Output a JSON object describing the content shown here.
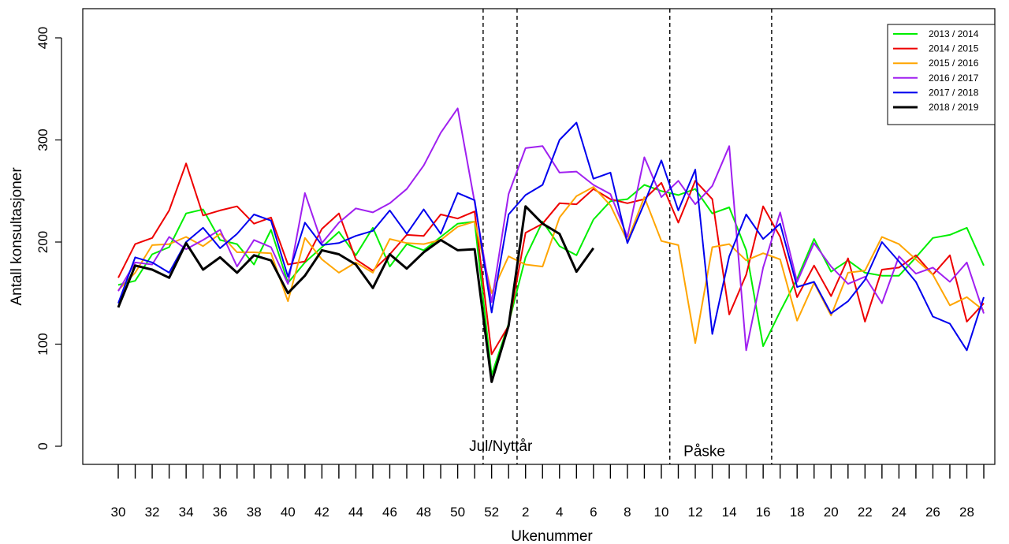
{
  "chart_data": {
    "type": "line",
    "title": "",
    "xlabel": "Ukenummer",
    "ylabel": "Antall konsultasjoner",
    "ylim": [
      0,
      400
    ],
    "yticks": [
      0,
      100,
      200,
      300,
      400
    ],
    "x_categories": [
      30,
      31,
      32,
      33,
      34,
      35,
      36,
      37,
      38,
      39,
      40,
      41,
      42,
      43,
      44,
      45,
      46,
      47,
      48,
      49,
      50,
      51,
      52,
      1,
      2,
      3,
      4,
      5,
      6,
      7,
      8,
      9,
      10,
      11,
      12,
      13,
      14,
      15,
      16,
      17,
      18,
      19,
      20,
      21,
      22,
      23,
      24,
      25,
      26,
      27,
      28,
      29
    ],
    "x_tick_labels": [
      "30",
      "32",
      "34",
      "36",
      "38",
      "40",
      "42",
      "44",
      "46",
      "48",
      "50",
      "52",
      "2",
      "4",
      "6",
      "8",
      "10",
      "12",
      "14",
      "16",
      "18",
      "20",
      "22",
      "24",
      "26",
      "28"
    ],
    "grid": false,
    "legend_position": "top-right",
    "vlines": [
      {
        "after_week": 51
      },
      {
        "after_week": 1
      },
      {
        "after_week": 10
      },
      {
        "after_week": 16
      }
    ],
    "annotations": [
      {
        "text": "Jul/Nyttår",
        "x_week": 1,
        "y": 0
      },
      {
        "text": "Påske",
        "x_week": 13,
        "y": -5
      }
    ],
    "series": [
      {
        "name": "2013 / 2014",
        "color": "#00ee00",
        "width": 2,
        "values": [
          158,
          162,
          188,
          195,
          228,
          232,
          202,
          198,
          178,
          212,
          160,
          180,
          195,
          210,
          187,
          214,
          176,
          198,
          192,
          205,
          218,
          220,
          70,
          120,
          185,
          220,
          196,
          187,
          222,
          240,
          242,
          256,
          250,
          246,
          252,
          228,
          234,
          192,
          98,
          132,
          164,
          203,
          171,
          182,
          170,
          167,
          167,
          185,
          204,
          207,
          214,
          177
        ]
      },
      {
        "name": "2014 / 2015",
        "color": "#ee0000",
        "width": 2,
        "values": [
          165,
          198,
          204,
          231,
          277,
          226,
          231,
          235,
          218,
          224,
          178,
          181,
          213,
          228,
          183,
          172,
          188,
          207,
          206,
          227,
          223,
          230,
          90,
          118,
          209,
          218,
          238,
          237,
          252,
          242,
          238,
          242,
          258,
          219,
          260,
          242,
          129,
          168,
          235,
          205,
          146,
          177,
          147,
          184,
          122,
          173,
          175,
          187,
          168,
          187,
          122,
          140
        ]
      },
      {
        "name": "2015 / 2016",
        "color": "#ffa500",
        "width": 2,
        "values": [
          153,
          170,
          197,
          198,
          205,
          196,
          208,
          190,
          190,
          189,
          142,
          204,
          183,
          170,
          180,
          170,
          203,
          199,
          198,
          202,
          215,
          220,
          150,
          186,
          178,
          176,
          224,
          245,
          254,
          236,
          201,
          244,
          201,
          197,
          101,
          195,
          198,
          182,
          189,
          183,
          123,
          160,
          128,
          170,
          172,
          205,
          198,
          183,
          168,
          138,
          146,
          133
        ]
      },
      {
        "name": "2016 / 2017",
        "color": "#a020f0",
        "width": 2,
        "values": [
          152,
          180,
          178,
          205,
          193,
          202,
          212,
          176,
          202,
          195,
          159,
          248,
          199,
          219,
          233,
          229,
          238,
          252,
          275,
          307,
          331,
          239,
          141,
          247,
          292,
          294,
          268,
          269,
          256,
          247,
          205,
          283,
          244,
          260,
          237,
          255,
          294,
          94,
          175,
          229,
          161,
          199,
          176,
          159,
          166,
          140,
          186,
          169,
          175,
          161,
          180,
          130
        ]
      },
      {
        "name": "2017 / 2018",
        "color": "#0000ee",
        "width": 2,
        "values": [
          140,
          185,
          180,
          170,
          200,
          214,
          194,
          208,
          227,
          221,
          166,
          219,
          197,
          199,
          206,
          211,
          231,
          208,
          232,
          208,
          248,
          241,
          131,
          227,
          246,
          256,
          300,
          317,
          262,
          268,
          199,
          238,
          280,
          231,
          271,
          110,
          186,
          227,
          203,
          218,
          156,
          161,
          130,
          142,
          163,
          200,
          181,
          161,
          127,
          120,
          94,
          146
        ]
      },
      {
        "name": "2018 / 2019",
        "color": "#000000",
        "width": 3,
        "values": [
          136,
          177,
          173,
          165,
          199,
          173,
          185,
          170,
          187,
          182,
          150,
          167,
          192,
          188,
          178,
          155,
          188,
          174,
          190,
          202,
          192,
          193,
          63,
          118,
          235,
          218,
          208,
          171,
          194,
          null,
          null,
          null,
          null,
          null,
          null,
          null,
          null,
          null,
          null,
          null,
          null,
          null,
          null,
          null,
          null,
          null,
          null,
          null,
          null,
          null,
          null,
          null
        ]
      }
    ]
  }
}
